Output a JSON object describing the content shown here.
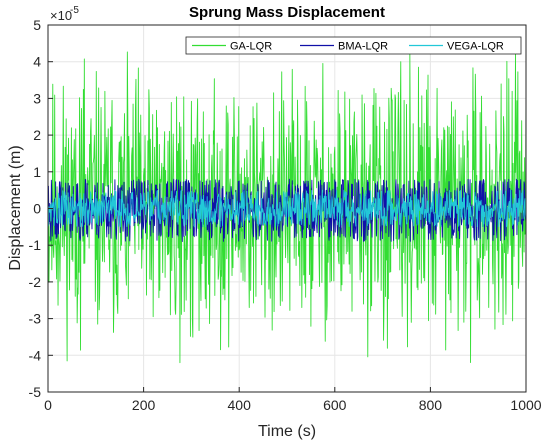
{
  "chart_data": {
    "type": "line",
    "title": "Sprung Mass Displacement",
    "xlabel": "Time (s)",
    "ylabel": "Displacement (m)",
    "y_exponent_label": "×10",
    "y_exponent_power": "-5",
    "xlim": [
      0,
      1000
    ],
    "ylim": [
      -5,
      5
    ],
    "x_ticks": [
      "0",
      "200",
      "400",
      "600",
      "800",
      "1000"
    ],
    "y_ticks": [
      "-5",
      "-4",
      "-3",
      "-2",
      "-1",
      "0",
      "1",
      "2",
      "3",
      "4",
      "5"
    ],
    "grid": true,
    "legend_position": "top-right",
    "series": [
      {
        "name": "GA-LQR",
        "color": "#33dd33",
        "amplitude": 2.6,
        "peak_max": 4.3,
        "peak_min": -4.2,
        "seed": 11
      },
      {
        "name": "BMA-LQR",
        "color": "#1010a8",
        "amplitude": 0.85,
        "peak_max": 0.8,
        "peak_min": -0.9,
        "seed": 23
      },
      {
        "name": "VEGA-LQR",
        "color": "#22c8d8",
        "amplitude": 0.45,
        "peak_max": 0.5,
        "peak_min": -0.5,
        "seed": 37
      }
    ]
  }
}
